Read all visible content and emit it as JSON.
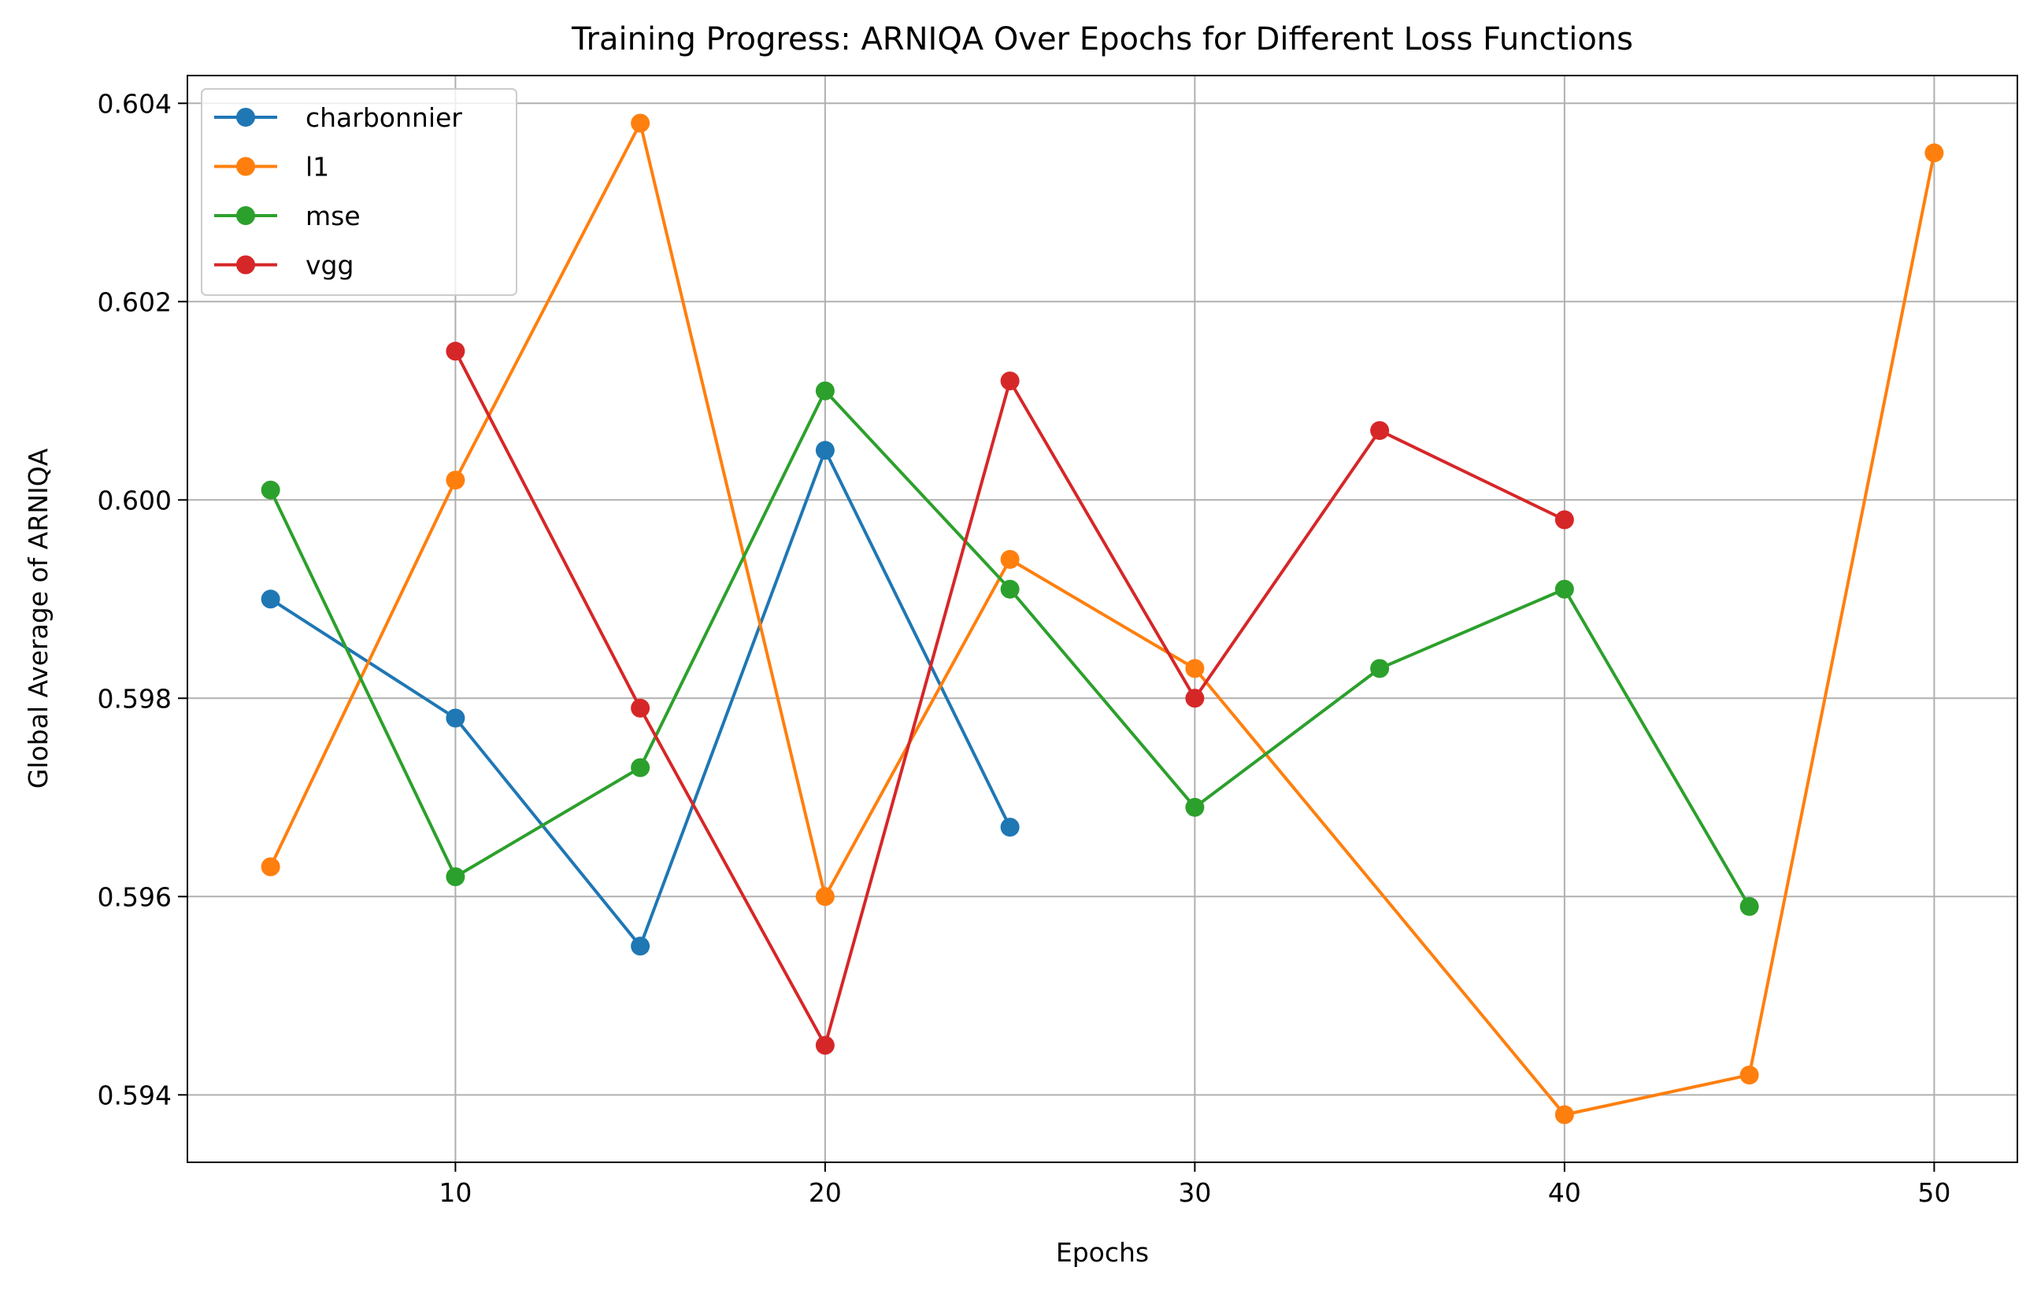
{
  "chart_data": {
    "type": "line",
    "title": "Training Progress: ARNIQA Over Epochs for Different Loss Functions",
    "xlabel": "Epochs",
    "ylabel": "Global Average of ARNIQA",
    "xlim": [
      2.75,
      52.25
    ],
    "ylim": [
      0.59332,
      0.60428
    ],
    "xticks": [
      10,
      20,
      30,
      40,
      50
    ],
    "xtick_labels": [
      "10",
      "20",
      "30",
      "40",
      "50"
    ],
    "yticks": [
      0.594,
      0.596,
      0.598,
      0.6,
      0.602,
      0.604
    ],
    "ytick_labels": [
      "0.594",
      "0.596",
      "0.598",
      "0.600",
      "0.602",
      "0.604"
    ],
    "grid": true,
    "legend_position": "top-left",
    "series": [
      {
        "name": "charbonnier",
        "color": "#1f77b4",
        "x": [
          5,
          10,
          15,
          20,
          25
        ],
        "y": [
          0.599,
          0.5978,
          0.5955,
          0.6005,
          0.5967
        ]
      },
      {
        "name": "l1",
        "color": "#ff7f0e",
        "x": [
          5,
          10,
          15,
          20,
          25,
          30,
          40,
          45,
          50
        ],
        "y": [
          0.5963,
          0.6002,
          0.6038,
          0.596,
          0.5994,
          0.5983,
          0.5938,
          0.5942,
          0.6035
        ]
      },
      {
        "name": "mse",
        "color": "#2ca02c",
        "x": [
          5,
          10,
          15,
          20,
          25,
          30,
          35,
          40,
          45
        ],
        "y": [
          0.6001,
          0.5962,
          0.5973,
          0.6011,
          0.5991,
          0.5969,
          0.5983,
          0.5991,
          0.5959
        ]
      },
      {
        "name": "vgg",
        "color": "#d62728",
        "x": [
          10,
          15,
          20,
          25,
          30,
          35,
          40
        ],
        "y": [
          0.6015,
          0.5979,
          0.5945,
          0.6012,
          0.598,
          0.6007,
          0.5998
        ]
      }
    ]
  }
}
